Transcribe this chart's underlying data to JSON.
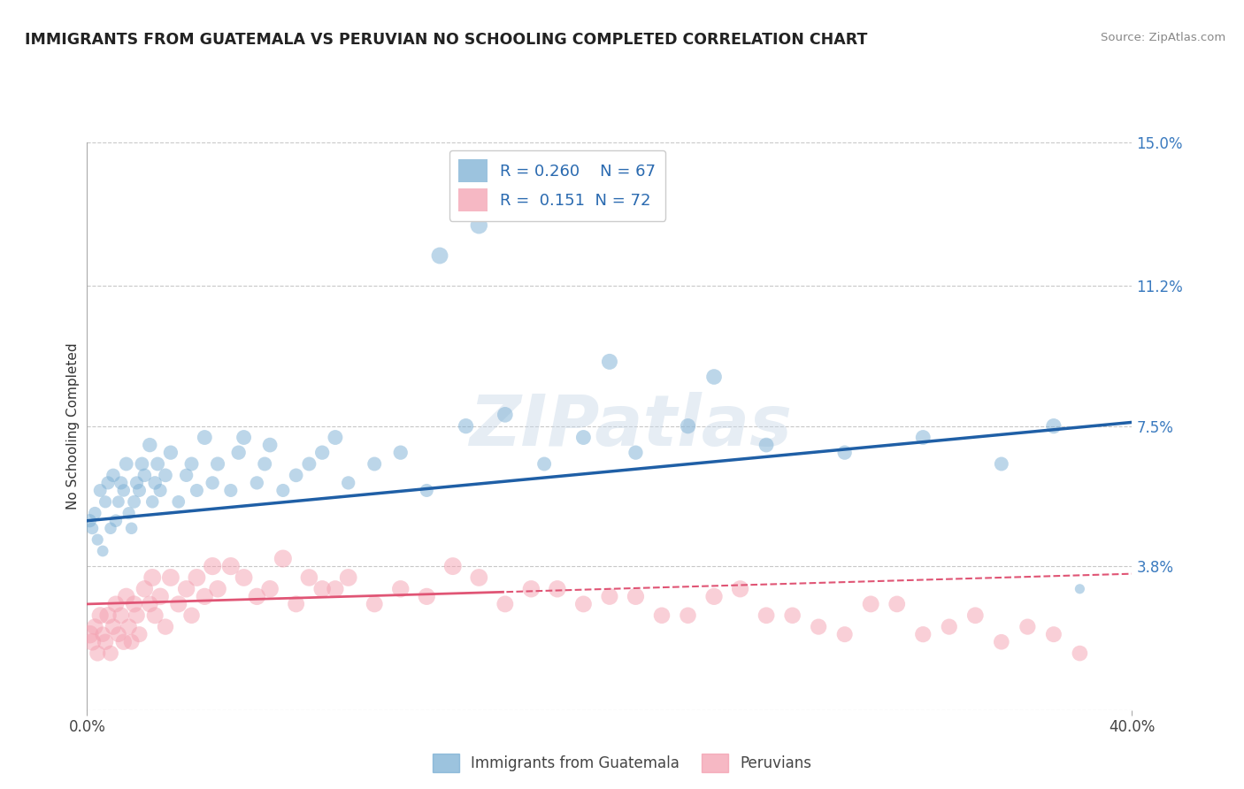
{
  "title": "IMMIGRANTS FROM GUATEMALA VS PERUVIAN NO SCHOOLING COMPLETED CORRELATION CHART",
  "source": "Source: ZipAtlas.com",
  "ylabel": "No Schooling Completed",
  "xlim": [
    0.0,
    0.4
  ],
  "ylim": [
    0.0,
    0.15
  ],
  "ytick_labels": [
    "",
    "3.8%",
    "7.5%",
    "11.2%",
    "15.0%"
  ],
  "ytick_values": [
    0.0,
    0.038,
    0.075,
    0.112,
    0.15
  ],
  "grid_color": "#c8c8c8",
  "background_color": "#ffffff",
  "watermark": "ZIPatlas",
  "legend_R1": "R = 0.260",
  "legend_N1": "N = 67",
  "legend_R2": "R =  0.151",
  "legend_N2": "N = 72",
  "color_blue": "#7bafd4",
  "color_pink": "#f4a0b0",
  "line_blue": "#1f5fa6",
  "line_pink": "#e05575",
  "legend_label1": "Immigrants from Guatemala",
  "legend_label2": "Peruvians",
  "blue_intercept": 0.05,
  "blue_slope": 0.065,
  "pink_intercept": 0.028,
  "pink_slope": 0.02,
  "blue_x": [
    0.001,
    0.002,
    0.003,
    0.004,
    0.005,
    0.006,
    0.007,
    0.008,
    0.009,
    0.01,
    0.011,
    0.012,
    0.013,
    0.014,
    0.015,
    0.016,
    0.017,
    0.018,
    0.019,
    0.02,
    0.021,
    0.022,
    0.024,
    0.025,
    0.026,
    0.027,
    0.028,
    0.03,
    0.032,
    0.035,
    0.038,
    0.04,
    0.042,
    0.045,
    0.048,
    0.05,
    0.055,
    0.058,
    0.06,
    0.065,
    0.068,
    0.07,
    0.075,
    0.08,
    0.085,
    0.09,
    0.095,
    0.1,
    0.11,
    0.12,
    0.13,
    0.145,
    0.16,
    0.175,
    0.19,
    0.21,
    0.23,
    0.26,
    0.29,
    0.32,
    0.35,
    0.37,
    0.38,
    0.135,
    0.15,
    0.2,
    0.24
  ],
  "blue_y": [
    0.05,
    0.048,
    0.052,
    0.045,
    0.058,
    0.042,
    0.055,
    0.06,
    0.048,
    0.062,
    0.05,
    0.055,
    0.06,
    0.058,
    0.065,
    0.052,
    0.048,
    0.055,
    0.06,
    0.058,
    0.065,
    0.062,
    0.07,
    0.055,
    0.06,
    0.065,
    0.058,
    0.062,
    0.068,
    0.055,
    0.062,
    0.065,
    0.058,
    0.072,
    0.06,
    0.065,
    0.058,
    0.068,
    0.072,
    0.06,
    0.065,
    0.07,
    0.058,
    0.062,
    0.065,
    0.068,
    0.072,
    0.06,
    0.065,
    0.068,
    0.058,
    0.075,
    0.078,
    0.065,
    0.072,
    0.068,
    0.075,
    0.07,
    0.068,
    0.072,
    0.065,
    0.075,
    0.032,
    0.12,
    0.128,
    0.092,
    0.088
  ],
  "blue_sizes": [
    120,
    100,
    110,
    90,
    115,
    85,
    105,
    120,
    95,
    125,
    110,
    100,
    120,
    110,
    130,
    105,
    95,
    115,
    120,
    118,
    130,
    125,
    140,
    110,
    125,
    130,
    118,
    128,
    138,
    112,
    122,
    132,
    118,
    148,
    122,
    135,
    118,
    138,
    148,
    122,
    132,
    145,
    118,
    128,
    132,
    138,
    148,
    122,
    132,
    138,
    118,
    155,
    162,
    132,
    148,
    138,
    155,
    145,
    138,
    148,
    132,
    155,
    65,
    185,
    195,
    168,
    162
  ],
  "pink_x": [
    0.001,
    0.002,
    0.003,
    0.004,
    0.005,
    0.006,
    0.007,
    0.008,
    0.009,
    0.01,
    0.011,
    0.012,
    0.013,
    0.014,
    0.015,
    0.016,
    0.017,
    0.018,
    0.019,
    0.02,
    0.022,
    0.024,
    0.025,
    0.026,
    0.028,
    0.03,
    0.032,
    0.035,
    0.038,
    0.04,
    0.042,
    0.045,
    0.048,
    0.05,
    0.055,
    0.06,
    0.065,
    0.07,
    0.08,
    0.09,
    0.1,
    0.11,
    0.12,
    0.13,
    0.15,
    0.16,
    0.18,
    0.2,
    0.22,
    0.24,
    0.26,
    0.28,
    0.3,
    0.32,
    0.34,
    0.36,
    0.38,
    0.075,
    0.085,
    0.095,
    0.14,
    0.17,
    0.19,
    0.21,
    0.23,
    0.25,
    0.27,
    0.29,
    0.31,
    0.33,
    0.35,
    0.37
  ],
  "pink_y": [
    0.02,
    0.018,
    0.022,
    0.015,
    0.025,
    0.02,
    0.018,
    0.025,
    0.015,
    0.022,
    0.028,
    0.02,
    0.025,
    0.018,
    0.03,
    0.022,
    0.018,
    0.028,
    0.025,
    0.02,
    0.032,
    0.028,
    0.035,
    0.025,
    0.03,
    0.022,
    0.035,
    0.028,
    0.032,
    0.025,
    0.035,
    0.03,
    0.038,
    0.032,
    0.038,
    0.035,
    0.03,
    0.032,
    0.028,
    0.032,
    0.035,
    0.028,
    0.032,
    0.03,
    0.035,
    0.028,
    0.032,
    0.03,
    0.025,
    0.03,
    0.025,
    0.022,
    0.028,
    0.02,
    0.025,
    0.022,
    0.015,
    0.04,
    0.035,
    0.032,
    0.038,
    0.032,
    0.028,
    0.03,
    0.025,
    0.032,
    0.025,
    0.02,
    0.028,
    0.022,
    0.018,
    0.02
  ],
  "pink_sizes": [
    220,
    200,
    180,
    170,
    190,
    160,
    175,
    195,
    165,
    175,
    185,
    165,
    185,
    175,
    195,
    175,
    165,
    190,
    180,
    170,
    195,
    182,
    205,
    188,
    198,
    175,
    205,
    188,
    195,
    178,
    205,
    192,
    210,
    198,
    210,
    202,
    195,
    198,
    185,
    195,
    202,
    185,
    195,
    192,
    202,
    185,
    195,
    188,
    178,
    192,
    182,
    172,
    185,
    172,
    182,
    172,
    162,
    208,
    198,
    192,
    205,
    195,
    185,
    192,
    178,
    192,
    178,
    168,
    182,
    172,
    162,
    168
  ]
}
